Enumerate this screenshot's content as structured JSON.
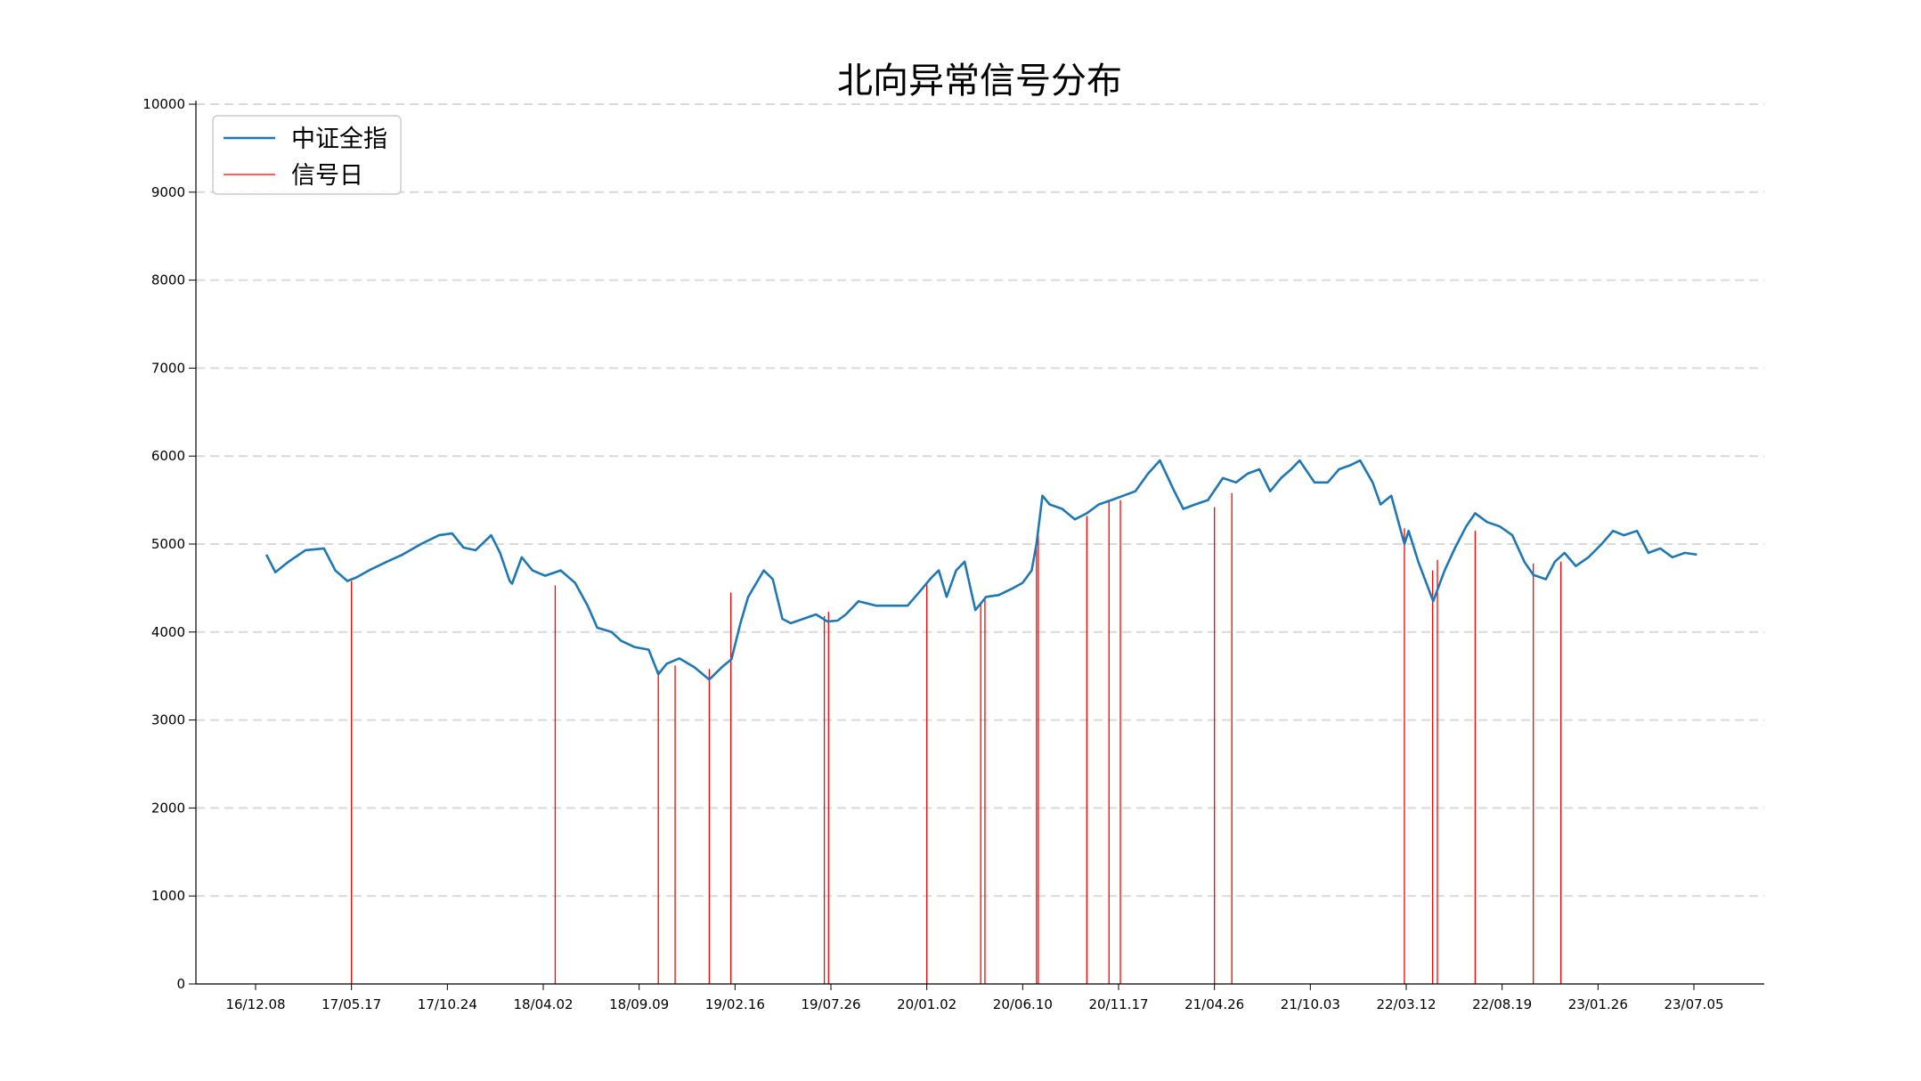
{
  "chart_data": {
    "type": "line",
    "title": "北向异常信号分布",
    "xlabel": "",
    "ylabel": "",
    "ylim": [
      0,
      10000
    ],
    "y_ticks": [
      0,
      1000,
      2000,
      3000,
      4000,
      5000,
      6000,
      7000,
      8000,
      9000,
      10000
    ],
    "x_tick_labels": [
      "16/12.08",
      "17/05.17",
      "17/10.24",
      "18/04.02",
      "18/09.09",
      "19/02.16",
      "19/07.26",
      "20/01.02",
      "20/06.10",
      "20/11.17",
      "21/04.26",
      "21/10.03",
      "22/03.12",
      "22/08.19",
      "23/01.26",
      "23/07.05"
    ],
    "grid": "horizontal dashed",
    "legend_position": "top-left",
    "colors": {
      "index_line": "#1f77b4",
      "signal": "#ff0000"
    },
    "series": [
      {
        "name": "中证全指",
        "x": [
          "16/12.26",
          "17/01.10",
          "17/02.01",
          "17/03.01",
          "17/04.01",
          "17/04.20",
          "17/05.10",
          "17/05.25",
          "17/06.15",
          "17/07.15",
          "17/08.10",
          "17/09.10",
          "17/10.10",
          "17/11.01",
          "17/11.20",
          "17/12.10",
          "18/01.05",
          "18/01.20",
          "18/02.05",
          "18/02.09",
          "18/02.25",
          "18/03.15",
          "18/04.05",
          "18/05.01",
          "18/05.25",
          "18/06.15",
          "18/07.01",
          "18/07.25",
          "18/08.10",
          "18/09.01",
          "18/09.25",
          "18/10.11",
          "18/10.25",
          "18/11.15",
          "18/12.10",
          "19/01.04",
          "19/01.25",
          "19/02.10",
          "19/02.25",
          "19/03.10",
          "19/04.05",
          "19/04.20",
          "19/05.06",
          "19/05.20",
          "19/06.10",
          "19/07.01",
          "19/07.20",
          "19/08.06",
          "19/08.20",
          "19/09.10",
          "19/10.10",
          "19/11.05",
          "19/12.01",
          "19/12.20",
          "20/01.10",
          "20/01.22",
          "20/02.04",
          "20/02.20",
          "20/03.05",
          "20/03.23",
          "20/04.10",
          "20/05.01",
          "20/05.25",
          "20/06.10",
          "20/06.25",
          "20/07.03",
          "20/07.13",
          "20/07.25",
          "20/08.15",
          "20/09.05",
          "20/09.25",
          "20/10.15",
          "20/11.05",
          "20/11.25",
          "20/12.15",
          "21/01.05",
          "21/01.25",
          "21/02.18",
          "21/03.05",
          "21/03.25",
          "21/04.15",
          "21/05.10",
          "21/06.01",
          "21/06.20",
          "21/07.10",
          "21/07.28",
          "21/08.15",
          "21/09.01",
          "21/09.15",
          "21/10.10",
          "21/11.01",
          "21/11.20",
          "21/12.10",
          "21/12.25",
          "22/01.15",
          "22/01.28",
          "22/02.15",
          "22/03.09",
          "22/03.16",
          "22/04.01",
          "22/04.26",
          "22/05.15",
          "22/06.01",
          "22/06.20",
          "22/07.05",
          "22/07.25",
          "22/08.15",
          "22/09.05",
          "22/09.25",
          "22/10.10",
          "22/10.31",
          "22/11.15",
          "22/12.01",
          "22/12.20",
          "23/01.10",
          "23/02.01",
          "23/02.20",
          "23/03.10",
          "23/04.01",
          "23/04.20",
          "23/05.10",
          "23/05.30",
          "23/06.20",
          "23/07.10"
        ],
        "values": [
          4880,
          4680,
          4800,
          4930,
          4950,
          4700,
          4580,
          4620,
          4700,
          4800,
          4880,
          5000,
          5100,
          5120,
          4960,
          4930,
          5100,
          4900,
          4580,
          4550,
          4850,
          4700,
          4640,
          4700,
          4560,
          4300,
          4050,
          4000,
          3900,
          3830,
          3800,
          3520,
          3640,
          3700,
          3600,
          3460,
          3600,
          3690,
          4100,
          4400,
          4700,
          4600,
          4150,
          4100,
          4150,
          4200,
          4120,
          4130,
          4200,
          4350,
          4300,
          4300,
          4300,
          4450,
          4620,
          4700,
          4400,
          4700,
          4800,
          4250,
          4400,
          4420,
          4500,
          4560,
          4700,
          5000,
          5550,
          5450,
          5400,
          5280,
          5350,
          5450,
          5500,
          5550,
          5600,
          5800,
          5950,
          5600,
          5400,
          5450,
          5500,
          5750,
          5700,
          5800,
          5850,
          5600,
          5750,
          5850,
          5950,
          5700,
          5700,
          5850,
          5900,
          5950,
          5700,
          5450,
          5550,
          5000,
          5150,
          4800,
          4350,
          4700,
          4950,
          5200,
          5350,
          5250,
          5200,
          5100,
          4800,
          4650,
          4600,
          4800,
          4900,
          4750,
          4850,
          5000,
          5150,
          5100,
          5150,
          4900,
          4950,
          4850,
          4900,
          4880
        ]
      }
    ],
    "signal_series": {
      "name": "信号日",
      "dates": [
        "17/05.17",
        "18/04.22",
        "18/10.11",
        "18/11.08",
        "19/01.04",
        "19/02.09",
        "19/07.15",
        "19/07.22",
        "20/01.02",
        "20/04.01",
        "20/04.08",
        "20/07.03",
        "20/07.06",
        "20/09.25",
        "20/11.01",
        "20/11.20",
        "21/04.26",
        "21/05.25",
        "22/03.09",
        "22/04.25",
        "22/05.03",
        "22/07.05",
        "22/10.10",
        "22/11.25"
      ],
      "values": [
        4580,
        4530,
        3560,
        3620,
        3580,
        4450,
        4180,
        4230,
        4550,
        4330,
        4400,
        5050,
        5200,
        5320,
        5480,
        5500,
        5420,
        5580,
        5180,
        4700,
        4820,
        5150,
        4780,
        4800
      ]
    }
  }
}
